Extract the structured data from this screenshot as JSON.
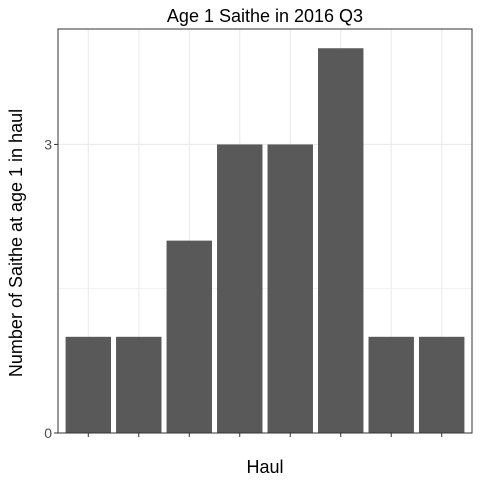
{
  "chart_data": {
    "type": "bar",
    "title": "Age 1 Saithe in 2016 Q3",
    "xlabel": "Haul",
    "ylabel": "Number of Saithe at age 1 in haul",
    "categories": [
      "",
      "",
      "",
      "",
      "",
      "",
      "",
      ""
    ],
    "values": [
      1,
      1,
      2,
      3,
      3,
      4,
      1,
      1
    ],
    "ylim": [
      0,
      4.2
    ],
    "yticks": [
      0,
      3
    ],
    "grid": true,
    "bar_color": "#595959",
    "grid_color": "#ebebeb",
    "panel_border_color": "#333333"
  }
}
